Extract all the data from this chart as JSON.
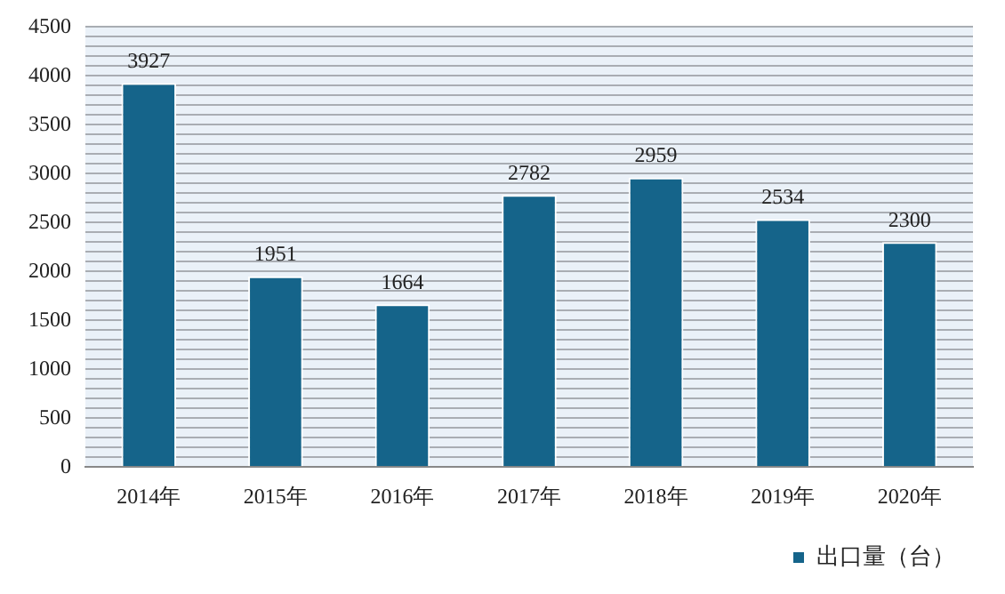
{
  "chart_data": {
    "type": "bar",
    "categories": [
      "2014年",
      "2015年",
      "2016年",
      "2017年",
      "2018年",
      "2019年",
      "2020年"
    ],
    "series": [
      {
        "name": "出口量（台）",
        "color": "#15648a",
        "values": [
          3927,
          1951,
          1664,
          2782,
          2959,
          2534,
          2300
        ]
      }
    ],
    "ylim": [
      0,
      4500
    ],
    "yticks": [
      0,
      {
        "value": 100,
        "label": null
      },
      {
        "value": 200,
        "label": null
      },
      {
        "value": 300,
        "label": null
      },
      {
        "value": 400,
        "label": null
      },
      500,
      {
        "value": 600,
        "label": null
      },
      {
        "value": 700,
        "label": null
      },
      {
        "value": 800,
        "label": null
      },
      {
        "value": 900,
        "label": null
      },
      1000,
      {
        "value": 1100,
        "label": null
      },
      {
        "value": 1200,
        "label": null
      },
      {
        "value": 1300,
        "label": null
      },
      {
        "value": 1400,
        "label": null
      },
      1500,
      {
        "value": 1600,
        "label": null
      },
      {
        "value": 1700,
        "label": null
      },
      {
        "value": 1800,
        "label": null
      },
      {
        "value": 1900,
        "label": null
      },
      2000,
      {
        "value": 2100,
        "label": null
      },
      {
        "value": 2200,
        "label": null
      },
      {
        "value": 2300,
        "label": null
      },
      {
        "value": 2400,
        "label": null
      },
      2500,
      {
        "value": 2600,
        "label": null
      },
      {
        "value": 2700,
        "label": null
      },
      {
        "value": 2800,
        "label": null
      },
      {
        "value": 2900,
        "label": null
      },
      3000,
      {
        "value": 3100,
        "label": null
      },
      {
        "value": 3200,
        "label": null
      },
      {
        "value": 3300,
        "label": null
      },
      {
        "value": 3400,
        "label": null
      },
      3500,
      {
        "value": 3600,
        "label": null
      },
      {
        "value": 3700,
        "label": null
      },
      {
        "value": 3800,
        "label": null
      },
      {
        "value": 3900,
        "label": null
      },
      4000,
      {
        "value": 4100,
        "label": null
      },
      {
        "value": 4200,
        "label": null
      },
      {
        "value": 4300,
        "label": null
      },
      {
        "value": 4400,
        "label": null
      },
      4500
    ],
    "grid": "y",
    "legend": "bottom",
    "data_labels": true
  }
}
